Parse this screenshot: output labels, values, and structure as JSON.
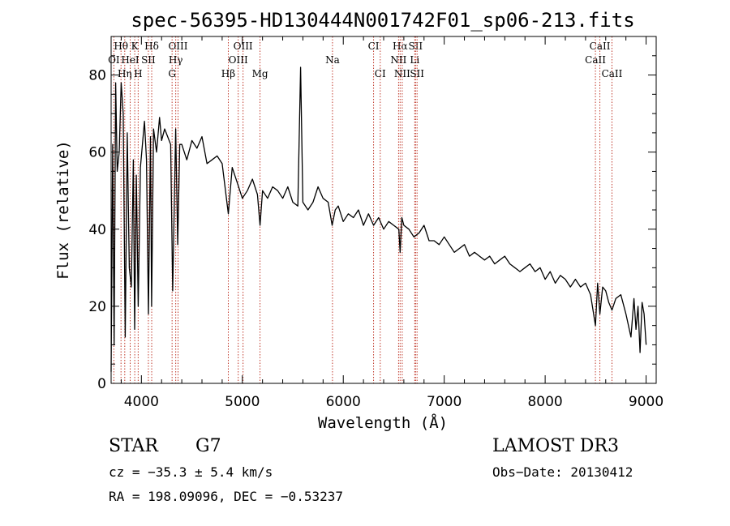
{
  "chart_data": {
    "type": "line",
    "title": "spec-56395-HD130444N001742F01_sp06-213.fits",
    "xlabel": "Wavelength (Å)",
    "ylabel": "Flux (relative)",
    "xlim": [
      3700,
      9100
    ],
    "ylim": [
      0,
      90
    ],
    "xticks": [
      4000,
      5000,
      6000,
      7000,
      8000,
      9000
    ],
    "xtick_labels": [
      "4000",
      "5000",
      "6000",
      "7000",
      "8000",
      "9000"
    ],
    "yticks": [
      0,
      20,
      40,
      60,
      80
    ],
    "ytick_labels": [
      "0",
      "20",
      "40",
      "60",
      "80"
    ],
    "grid": false,
    "series": [
      {
        "name": "flux",
        "color": "#000000",
        "x": [
          3700,
          3715,
          3730,
          3745,
          3760,
          3780,
          3800,
          3820,
          3840,
          3860,
          3880,
          3900,
          3920,
          3933,
          3950,
          3968,
          3990,
          4010,
          4030,
          4050,
          4070,
          4090,
          4101,
          4120,
          4150,
          4180,
          4200,
          4230,
          4260,
          4290,
          4310,
          4340,
          4360,
          4380,
          4400,
          4450,
          4500,
          4550,
          4600,
          4650,
          4700,
          4750,
          4800,
          4861,
          4900,
          4950,
          5000,
          5050,
          5100,
          5150,
          5175,
          5200,
          5250,
          5300,
          5350,
          5400,
          5450,
          5500,
          5550,
          5577,
          5600,
          5650,
          5700,
          5750,
          5800,
          5850,
          5890,
          5920,
          5950,
          6000,
          6050,
          6100,
          6150,
          6200,
          6250,
          6300,
          6350,
          6400,
          6450,
          6500,
          6550,
          6563,
          6580,
          6600,
          6650,
          6700,
          6750,
          6800,
          6850,
          6900,
          6950,
          7000,
          7050,
          7100,
          7150,
          7200,
          7250,
          7300,
          7350,
          7400,
          7450,
          7500,
          7550,
          7600,
          7650,
          7700,
          7750,
          7800,
          7850,
          7900,
          7950,
          8000,
          8050,
          8100,
          8150,
          8200,
          8250,
          8300,
          8350,
          8400,
          8450,
          8498,
          8520,
          8542,
          8570,
          8600,
          8630,
          8662,
          8700,
          8750,
          8800,
          8850,
          8880,
          8900,
          8920,
          8940,
          8960,
          8980,
          9000
        ],
        "values": [
          3,
          62,
          10,
          78,
          55,
          60,
          78,
          70,
          12,
          65,
          30,
          25,
          58,
          14,
          54,
          20,
          56,
          62,
          68,
          58,
          18,
          64,
          20,
          66,
          60,
          69,
          63,
          66,
          64,
          62,
          24,
          66,
          36,
          62,
          62,
          58,
          63,
          61,
          64,
          57,
          58,
          59,
          57,
          44,
          56,
          52,
          48,
          50,
          53,
          49,
          41,
          50,
          48,
          51,
          50,
          48,
          51,
          47,
          46,
          82,
          47,
          45,
          47,
          51,
          48,
          47,
          41,
          45,
          46,
          42,
          44,
          43,
          45,
          41,
          44,
          41,
          43,
          40,
          42,
          41,
          40,
          34,
          43,
          41,
          40,
          38,
          39,
          41,
          37,
          37,
          36,
          38,
          36,
          34,
          35,
          36,
          33,
          34,
          33,
          32,
          33,
          31,
          32,
          33,
          31,
          30,
          29,
          30,
          31,
          29,
          30,
          27,
          29,
          26,
          28,
          27,
          25,
          27,
          25,
          26,
          23,
          15,
          26,
          18,
          25,
          24,
          21,
          19,
          22,
          23,
          18,
          12,
          22,
          14,
          20,
          8,
          21,
          18,
          10
        ]
      }
    ],
    "spectral_lines": [
      {
        "label": "Hθ",
        "wavelength": 3798,
        "row": 0
      },
      {
        "label": "K",
        "wavelength": 3934,
        "row": 0
      },
      {
        "label": "Hδ",
        "wavelength": 4102,
        "row": 0
      },
      {
        "label": "OIII",
        "wavelength": 4363,
        "row": 0
      },
      {
        "label": "OIII",
        "wavelength": 5007,
        "row": 0
      },
      {
        "label": "CI",
        "wavelength": 6300,
        "row": 0
      },
      {
        "label": "Hα",
        "wavelength": 6563,
        "row": 0
      },
      {
        "label": "SII",
        "wavelength": 6716,
        "row": 0
      },
      {
        "label": "CaII",
        "wavelength": 8542,
        "row": 0
      },
      {
        "label": "OI",
        "wavelength": 3727,
        "row": 1
      },
      {
        "label": "HeI",
        "wavelength": 3889,
        "row": 1
      },
      {
        "label": "SII",
        "wavelength": 4069,
        "row": 1
      },
      {
        "label": "Hγ",
        "wavelength": 4340,
        "row": 1
      },
      {
        "label": "OIII",
        "wavelength": 4959,
        "row": 1
      },
      {
        "label": "Na",
        "wavelength": 5893,
        "row": 1
      },
      {
        "label": "NII",
        "wavelength": 6548,
        "row": 1
      },
      {
        "label": "Li",
        "wavelength": 6708,
        "row": 1
      },
      {
        "label": "CaII",
        "wavelength": 8498,
        "row": 1
      },
      {
        "label": "Hη",
        "wavelength": 3835,
        "row": 2
      },
      {
        "label": "H",
        "wavelength": 3968,
        "row": 2
      },
      {
        "label": "G",
        "wavelength": 4304,
        "row": 2
      },
      {
        "label": "Hβ",
        "wavelength": 4861,
        "row": 2
      },
      {
        "label": "Mg",
        "wavelength": 5175,
        "row": 2
      },
      {
        "label": "CI",
        "wavelength": 6366,
        "row": 2
      },
      {
        "label": "NII",
        "wavelength": 6584,
        "row": 2
      },
      {
        "label": "SII",
        "wavelength": 6731,
        "row": 2
      },
      {
        "label": "CaII",
        "wavelength": 8662,
        "row": 2
      }
    ],
    "line_color": "#c0392b"
  },
  "info": {
    "class": "STAR",
    "subclass": "G7",
    "cz": "cz = −35.3 ± 5.4 km/s",
    "radec": "RA = 198.09096, DEC =  −0.53237",
    "survey": "LAMOST DR3",
    "obsdate": "Obs−Date: 20130412"
  }
}
